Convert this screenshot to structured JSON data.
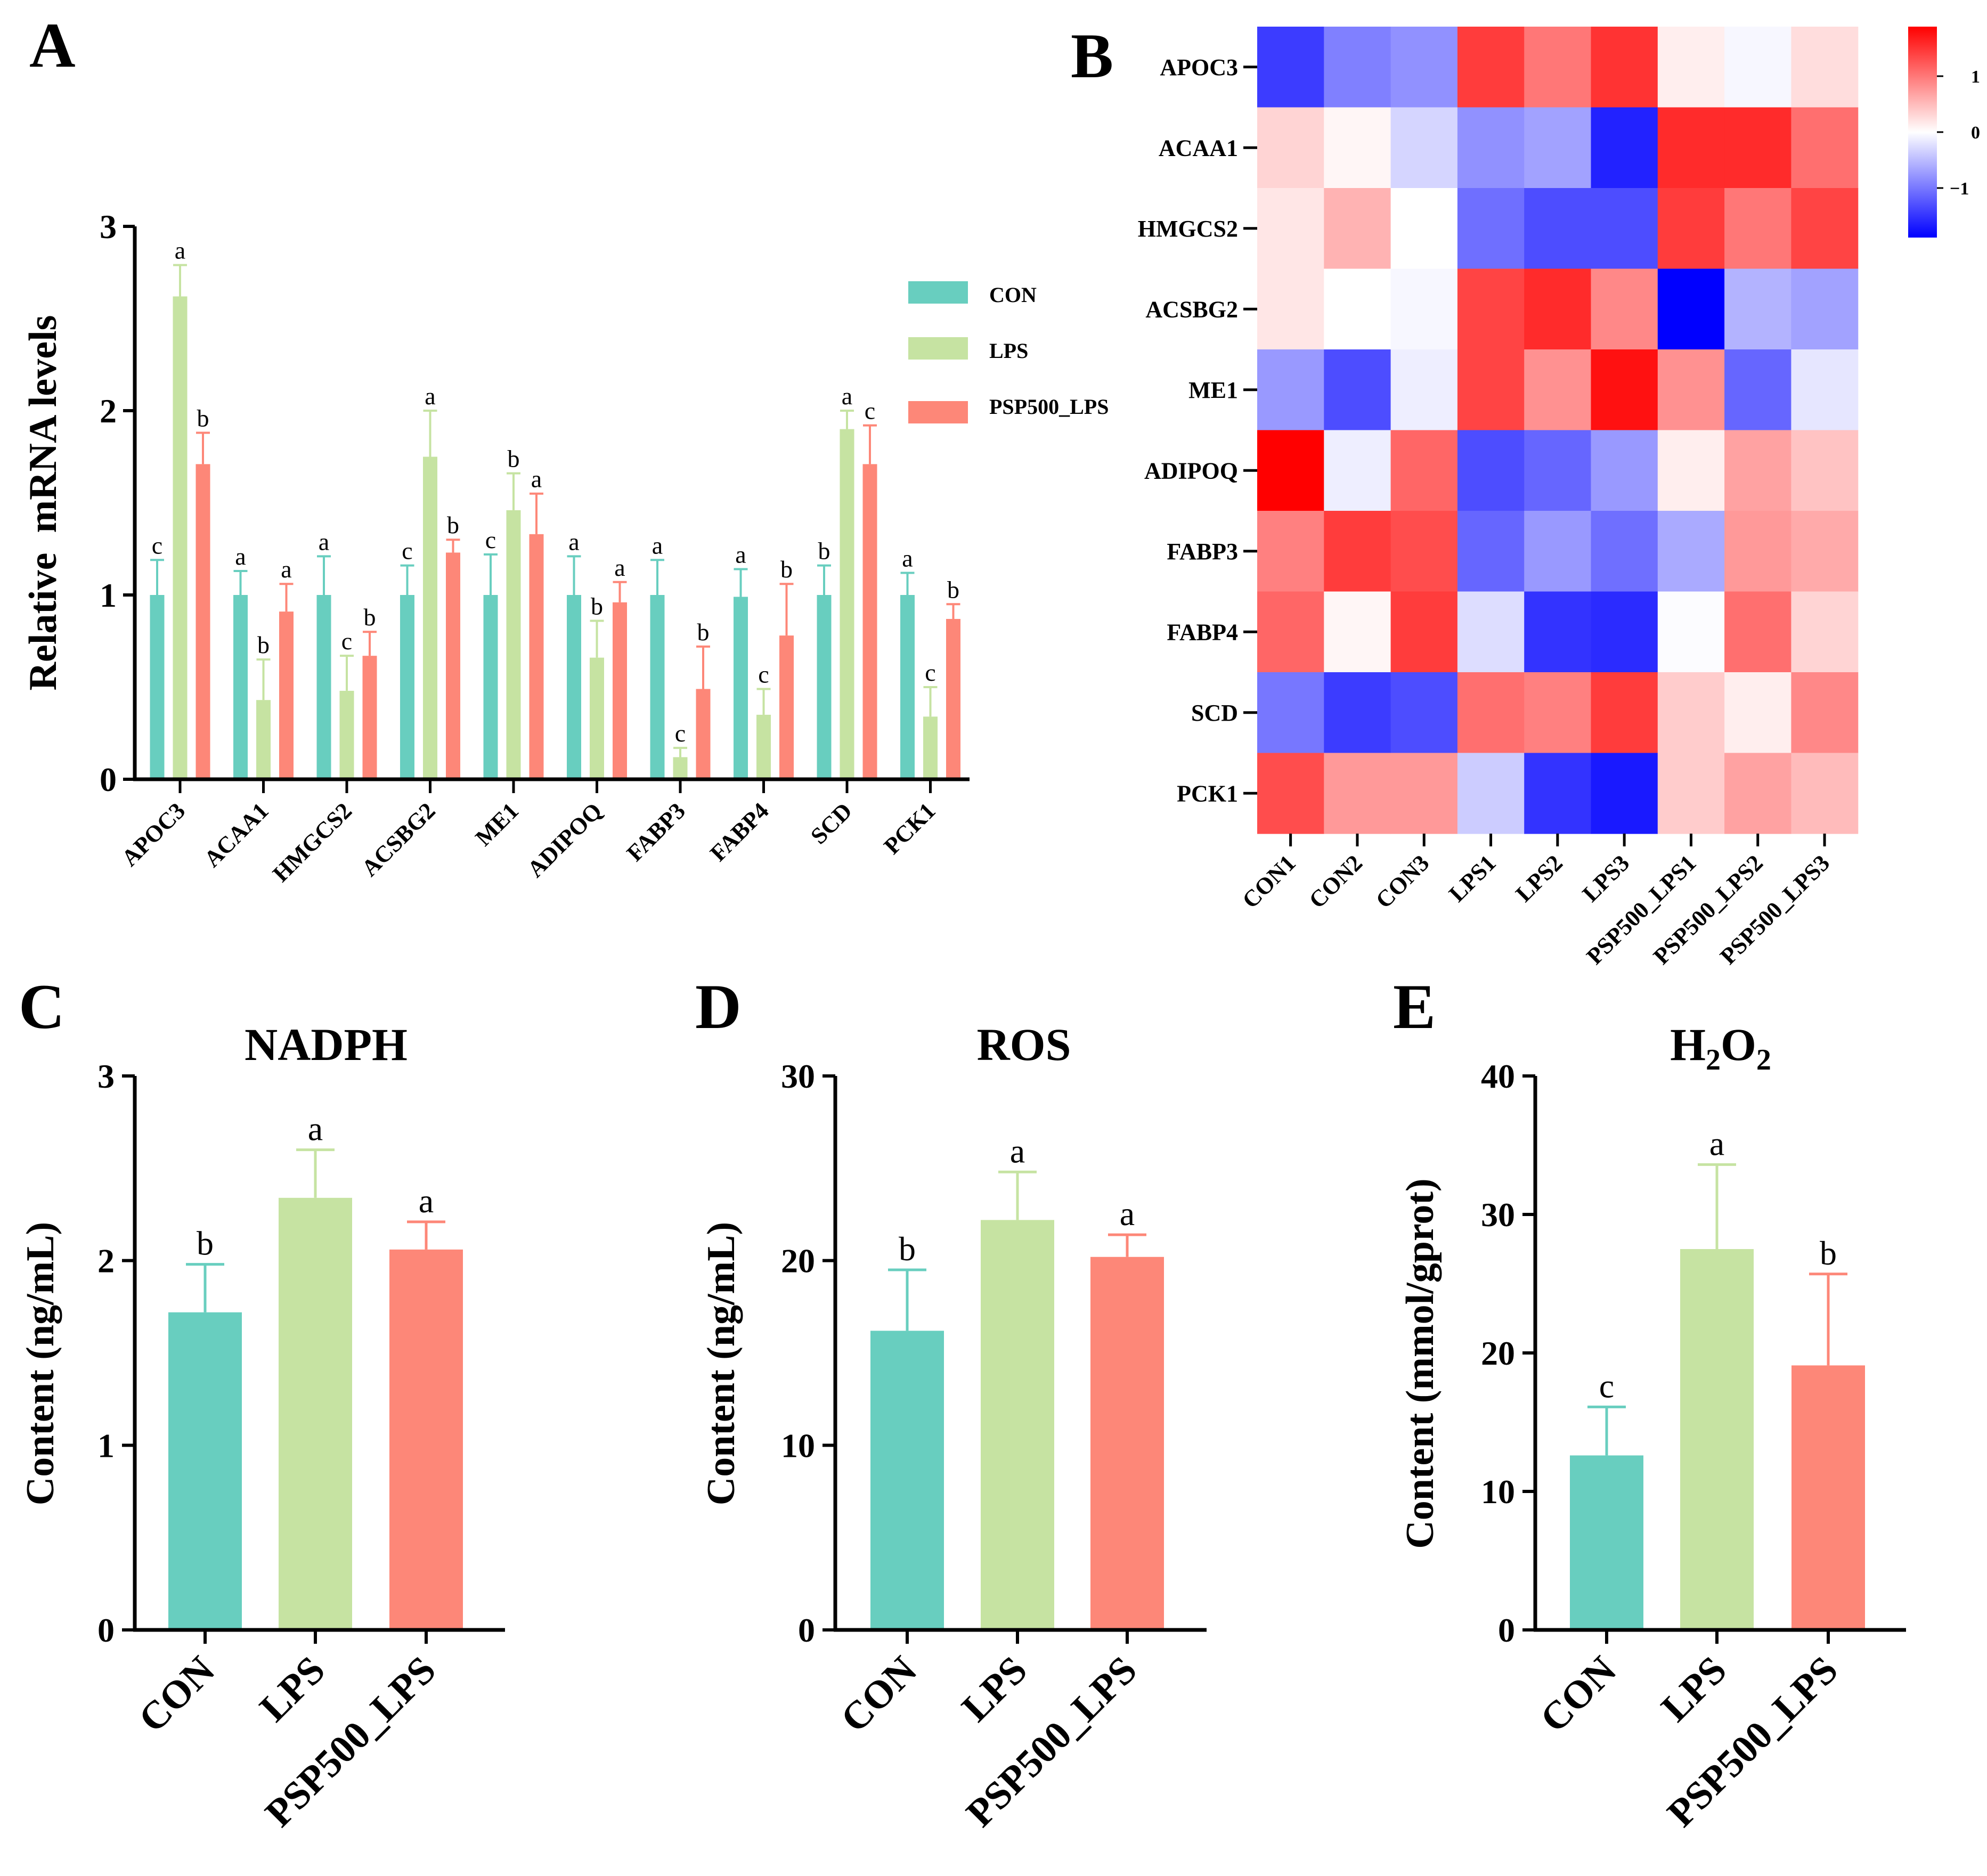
{
  "panels": {
    "A": "A",
    "B": "B",
    "C": "C",
    "D": "D",
    "E": "E"
  },
  "colors": {
    "CON": "#68cebf",
    "LPS": "#c6e3a2",
    "PSP500_LPS": "#fd8778"
  },
  "chart_data": [
    {
      "id": "A",
      "type": "bar",
      "title": "",
      "xlabel": "",
      "ylabel": "Relative  mRNA levels",
      "ylim": [
        0,
        3
      ],
      "yticks": [
        "0",
        "1",
        "2",
        "3"
      ],
      "legend_position": "right",
      "categories": [
        "APOC3",
        "ACAA1",
        "HMGCS2",
        "ACSBG2",
        "ME1",
        "ADIPOQ",
        "FABP3",
        "FABP4",
        "SCD",
        "PCK1"
      ],
      "series": [
        {
          "name": "CON",
          "values": [
            1.0,
            1.0,
            1.0,
            1.0,
            1.0,
            1.0,
            1.0,
            0.99,
            1.0,
            1.0
          ],
          "errors": [
            0.19,
            0.13,
            0.21,
            0.16,
            0.22,
            0.21,
            0.19,
            0.15,
            0.16,
            0.12
          ],
          "labels": [
            "c",
            "a",
            "a",
            "c",
            "c",
            "a",
            "a",
            "a",
            "b",
            "a"
          ]
        },
        {
          "name": "LPS",
          "values": [
            2.62,
            0.43,
            0.48,
            1.75,
            1.46,
            0.66,
            0.12,
            0.35,
            1.9,
            0.34
          ],
          "errors": [
            0.17,
            0.22,
            0.19,
            0.25,
            0.2,
            0.2,
            0.05,
            0.14,
            0.1,
            0.16
          ],
          "labels": [
            "a",
            "b",
            "c",
            "a",
            "b",
            "b",
            "c",
            "c",
            "a",
            "c"
          ]
        },
        {
          "name": "PSP500_LPS",
          "values": [
            1.71,
            0.91,
            0.67,
            1.23,
            1.33,
            0.96,
            0.49,
            0.78,
            1.71,
            0.87
          ],
          "errors": [
            0.17,
            0.15,
            0.13,
            0.07,
            0.22,
            0.11,
            0.23,
            0.28,
            0.21,
            0.08
          ],
          "labels": [
            "b",
            "a",
            "b",
            "b",
            "a",
            "a",
            "b",
            "b",
            "c",
            "b"
          ]
        }
      ]
    },
    {
      "id": "B",
      "type": "heatmap",
      "rows": [
        "APOC3",
        "ACAA1",
        "HMGCS2",
        "ACSBG2",
        "ME1",
        "ADIPOQ",
        "FABP3",
        "FABP4",
        "SCD",
        "PCK1"
      ],
      "columns": [
        "CON1",
        "CON2",
        "CON3",
        "LPS1",
        "LPS2",
        "LPS3",
        "PSP500_LPS1",
        "PSP500_LPS2",
        "PSP500_LPS3"
      ],
      "values": [
        [
          -1.15,
          -0.75,
          -0.65,
          1.15,
          0.8,
          1.2,
          0.1,
          -0.05,
          0.2
        ],
        [
          0.25,
          0.05,
          -0.25,
          -0.65,
          -0.55,
          -1.3,
          1.25,
          1.25,
          0.85
        ],
        [
          0.15,
          0.45,
          0.0,
          -0.85,
          -1.05,
          -1.05,
          1.15,
          0.8,
          1.1
        ],
        [
          0.15,
          0.0,
          -0.05,
          1.1,
          1.25,
          0.7,
          -1.5,
          -0.45,
          -0.55
        ],
        [
          -0.6,
          -1.05,
          -0.1,
          1.1,
          0.65,
          1.4,
          0.65,
          -0.9,
          -0.15
        ],
        [
          1.55,
          -0.1,
          0.9,
          -1.05,
          -0.9,
          -0.6,
          0.1,
          0.55,
          0.35
        ],
        [
          0.75,
          1.15,
          1.05,
          -0.9,
          -0.6,
          -0.85,
          -0.5,
          0.6,
          0.5
        ],
        [
          0.9,
          0.05,
          1.15,
          -0.2,
          -1.2,
          -1.25,
          -0.02,
          0.85,
          0.25
        ],
        [
          -0.8,
          -1.15,
          -1.05,
          0.85,
          0.75,
          1.15,
          0.3,
          0.1,
          0.7
        ],
        [
          1.05,
          0.6,
          0.6,
          -0.3,
          -1.2,
          -1.35,
          0.3,
          0.55,
          0.4
        ]
      ],
      "colorbar": {
        "min": -1.5,
        "max": 1.5,
        "ticks": [
          "1",
          "0",
          "−1"
        ]
      }
    },
    {
      "id": "C",
      "type": "bar",
      "title": "NADPH",
      "ylabel": "Content (ng/mL)",
      "ylim": [
        0,
        3
      ],
      "yticks": [
        "0",
        "1",
        "2",
        "3"
      ],
      "categories": [
        "CON",
        "LPS",
        "PSP500_LPS"
      ],
      "values": [
        1.72,
        2.34,
        2.06
      ],
      "errors": [
        0.26,
        0.26,
        0.15
      ],
      "labels": [
        "b",
        "a",
        "a"
      ]
    },
    {
      "id": "D",
      "type": "bar",
      "title": "ROS",
      "ylabel": "Content (ng/mL)",
      "ylim": [
        0,
        30
      ],
      "yticks": [
        "0",
        "10",
        "20",
        "30"
      ],
      "categories": [
        "CON",
        "LPS",
        "PSP500_LPS"
      ],
      "values": [
        16.2,
        22.2,
        20.2
      ],
      "errors": [
        3.3,
        2.6,
        1.2
      ],
      "labels": [
        "b",
        "a",
        "a"
      ]
    },
    {
      "id": "E",
      "type": "bar",
      "title_main": "H",
      "title_sub": "2",
      "title_main2": "O",
      "title_sub2": "2",
      "ylabel": "Content (mmol/gprot)",
      "ylim": [
        0,
        40
      ],
      "yticks": [
        "0",
        "10",
        "20",
        "30",
        "40"
      ],
      "categories": [
        "CON",
        "LPS",
        "PSP500_LPS"
      ],
      "values": [
        12.6,
        27.5,
        19.1
      ],
      "errors": [
        3.5,
        6.1,
        6.6
      ],
      "labels": [
        "c",
        "a",
        "b"
      ]
    }
  ]
}
